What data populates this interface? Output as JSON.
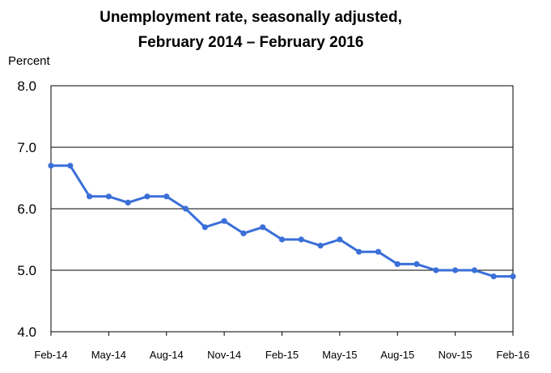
{
  "chart_data": {
    "type": "line",
    "title_line1": "Unemployment rate, seasonally adjusted,",
    "title_line2": "February 2014 – February 2016",
    "ylabel": "Percent",
    "xlabel": "",
    "ylim": [
      4.0,
      8.0
    ],
    "yticks": [
      "4.0",
      "5.0",
      "6.0",
      "7.0",
      "8.0"
    ],
    "xtick_labels": [
      "Feb-14",
      "May-14",
      "Aug-14",
      "Nov-14",
      "Feb-15",
      "May-15",
      "Aug-15",
      "Nov-15",
      "Feb-16"
    ],
    "grid": true,
    "line_color": "#3b6fd8",
    "months": [
      "Feb-14",
      "Mar-14",
      "Apr-14",
      "May-14",
      "Jun-14",
      "Jul-14",
      "Aug-14",
      "Sep-14",
      "Oct-14",
      "Nov-14",
      "Dec-14",
      "Jan-15",
      "Feb-15",
      "Mar-15",
      "Apr-15",
      "May-15",
      "Jun-15",
      "Jul-15",
      "Aug-15",
      "Sep-15",
      "Oct-15",
      "Nov-15",
      "Dec-15",
      "Jan-16",
      "Feb-16"
    ],
    "values": [
      6.7,
      6.7,
      6.2,
      6.2,
      6.1,
      6.2,
      6.2,
      6.0,
      5.7,
      5.8,
      5.6,
      5.7,
      5.5,
      5.5,
      5.4,
      5.5,
      5.3,
      5.3,
      5.1,
      5.1,
      5.0,
      5.0,
      5.0,
      4.9,
      4.9
    ]
  }
}
